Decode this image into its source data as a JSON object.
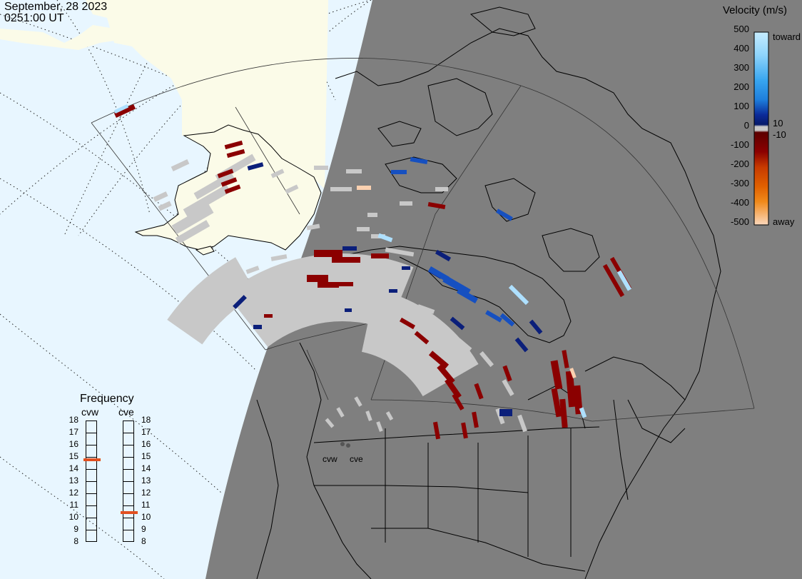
{
  "header": {
    "date": "September, 28 2023",
    "time": "0251:00 UT"
  },
  "velocity_legend": {
    "title": "Velocity (m/s)",
    "ticks": [
      "500",
      "400",
      "300",
      "200",
      "100",
      "0",
      "-100",
      "-200",
      "-300",
      "-400",
      "-500"
    ],
    "label_toward": "toward",
    "label_away": "away",
    "label_pos_threshold": "10",
    "label_neg_threshold": "-10",
    "colors_toward": [
      "#c6ecff",
      "#8ed4fb",
      "#38a6f0",
      "#1e7fdc",
      "#1650c0",
      "#0b2a98",
      "#061a6a"
    ],
    "colors_away": [
      "#5c0000",
      "#8b0000",
      "#a81a00",
      "#c73a00",
      "#e06000",
      "#f08a1a",
      "#f6b070",
      "#fbd8bc"
    ],
    "near_zero_color": "#c8c8c8"
  },
  "frequency_legend": {
    "title": "Frequency",
    "radars": [
      {
        "name": "cvw",
        "frequency_mhz": 14.8,
        "marker_color": "#e25020"
      },
      {
        "name": "cve",
        "frequency_mhz": 10.5,
        "marker_color": "#e25020"
      }
    ],
    "ticks": [
      "18",
      "17",
      "16",
      "15",
      "14",
      "13",
      "12",
      "11",
      "10",
      "9",
      "8"
    ]
  },
  "radar_labels": {
    "cvw": "cvw",
    "cve": "cve"
  },
  "colors": {
    "ocean": "#e8f6ff",
    "night": "#7f7f7f",
    "land_day": "#fbfbe8",
    "coast": "#000000",
    "graticule": "#333333"
  }
}
